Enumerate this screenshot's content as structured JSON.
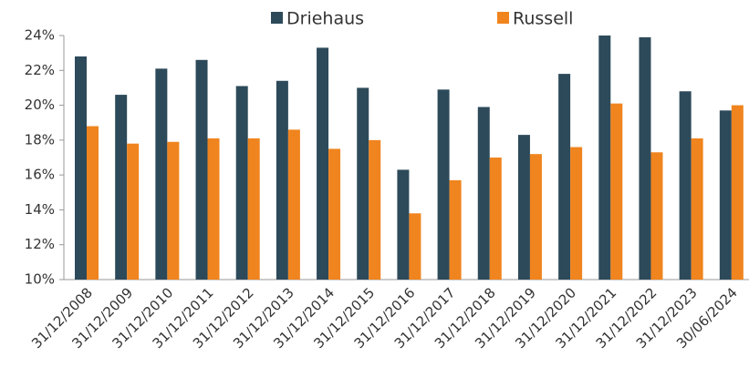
{
  "chart_data": {
    "type": "bar",
    "categories": [
      "31/12/2008",
      "31/12/2009",
      "31/12/2010",
      "31/12/2011",
      "31/12/2012",
      "31/12/2013",
      "31/12/2014",
      "31/12/2015",
      "31/12/2016",
      "31/12/2017",
      "31/12/2018",
      "31/12/2019",
      "31/12/2020",
      "31/12/2021",
      "31/12/2022",
      "31/12/2023",
      "30/06/2024"
    ],
    "series": [
      {
        "name": "Driehaus",
        "color": "#2d4a5a",
        "values": [
          22.8,
          20.6,
          22.1,
          22.6,
          21.1,
          21.4,
          23.3,
          21.0,
          16.3,
          20.9,
          19.9,
          18.3,
          21.8,
          24.0,
          23.9,
          20.8,
          19.7
        ]
      },
      {
        "name": "Russell",
        "color": "#f0841e",
        "values": [
          18.8,
          17.8,
          17.9,
          18.1,
          18.1,
          18.6,
          17.5,
          18.0,
          13.8,
          15.7,
          17.0,
          17.2,
          17.6,
          20.1,
          17.3,
          18.1,
          20.0
        ]
      }
    ],
    "ylim": [
      10,
      24
    ],
    "yticks": [
      {
        "value": 10,
        "label": "10%"
      },
      {
        "value": 12,
        "label": "12%"
      },
      {
        "value": 14,
        "label": "14%"
      },
      {
        "value": 16,
        "label": "16%"
      },
      {
        "value": 18,
        "label": "18%"
      },
      {
        "value": 20,
        "label": "20%"
      },
      {
        "value": 22,
        "label": "22%"
      },
      {
        "value": 24,
        "label": "24%"
      }
    ],
    "legend": "top"
  }
}
